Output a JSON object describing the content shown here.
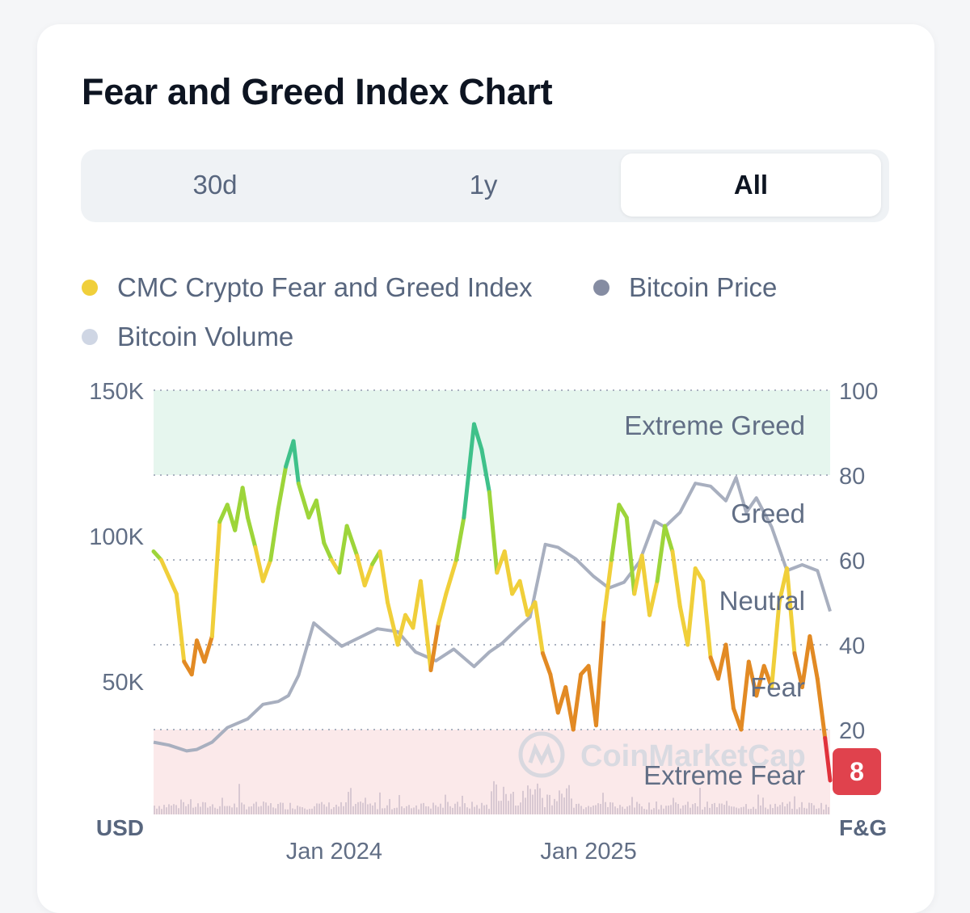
{
  "title": "Fear and Greed Index Chart",
  "tabs": [
    {
      "label": "30d",
      "active": false
    },
    {
      "label": "1y",
      "active": false
    },
    {
      "label": "All",
      "active": true
    }
  ],
  "legend": [
    {
      "label": "CMC Crypto Fear and Greed Index",
      "color": "#f0cf3a"
    },
    {
      "label": "Bitcoin Price",
      "color": "#858ca2"
    },
    {
      "label": "Bitcoin Volume",
      "color": "#cfd6e4"
    }
  ],
  "chart_data": {
    "type": "line",
    "left_axis": {
      "label": "USD",
      "ticks": [
        "150K",
        "100K",
        "50K"
      ],
      "tick_values": [
        150000,
        100000,
        50000
      ],
      "range": [
        0,
        150000
      ]
    },
    "right_axis": {
      "label": "F&G",
      "ticks": [
        "100",
        "80",
        "60",
        "40",
        "20"
      ],
      "tick_values": [
        100,
        80,
        60,
        40,
        20
      ],
      "range": [
        0,
        100
      ]
    },
    "x_ticks": [
      "Jan 2024",
      "Jan 2025"
    ],
    "x_tick_values": [
      2024.0,
      2025.0
    ],
    "x_range": [
      2023.29,
      2025.95
    ],
    "zones": [
      {
        "label": "Extreme Greed",
        "from": 80,
        "to": 100,
        "color": "#e6f6ee"
      },
      {
        "label": "Greed",
        "from": 60,
        "to": 80
      },
      {
        "label": "Neutral",
        "from": 40,
        "to": 60
      },
      {
        "label": "Fear",
        "from": 20,
        "to": 40
      },
      {
        "label": "Extreme Fear",
        "from": 0,
        "to": 20,
        "color": "#fbe9ea"
      }
    ],
    "current_value": "8",
    "watermark": "CoinMarketCap",
    "series": [
      {
        "name": "CMC Crypto Fear and Greed Index",
        "axis": "right",
        "x": [
          2023.29,
          2023.32,
          2023.35,
          2023.38,
          2023.41,
          2023.44,
          2023.46,
          2023.49,
          2023.52,
          2023.55,
          2023.58,
          2023.61,
          2023.64,
          2023.66,
          2023.69,
          2023.72,
          2023.75,
          2023.78,
          2023.81,
          2023.84,
          2023.86,
          2023.9,
          2023.93,
          2023.96,
          2023.99,
          2024.02,
          2024.05,
          2024.09,
          2024.12,
          2024.15,
          2024.18,
          2024.21,
          2024.25,
          2024.28,
          2024.31,
          2024.34,
          2024.38,
          2024.41,
          2024.44,
          2024.48,
          2024.51,
          2024.55,
          2024.58,
          2024.61,
          2024.64,
          2024.67,
          2024.7,
          2024.73,
          2024.76,
          2024.79,
          2024.82,
          2024.85,
          2024.88,
          2024.91,
          2024.94,
          2024.97,
          2025.0,
          2025.03,
          2025.06,
          2025.09,
          2025.12,
          2025.15,
          2025.18,
          2025.21,
          2025.24,
          2025.27,
          2025.3,
          2025.33,
          2025.36,
          2025.39,
          2025.42,
          2025.45,
          2025.48,
          2025.51,
          2025.54,
          2025.57,
          2025.6,
          2025.63,
          2025.66,
          2025.69,
          2025.72,
          2025.75,
          2025.78,
          2025.81,
          2025.84,
          2025.87,
          2025.9,
          2025.93,
          2025.95
        ],
        "values": [
          62,
          60,
          56,
          52,
          36,
          33,
          41,
          36,
          42,
          69,
          73,
          67,
          77,
          70,
          63,
          55,
          60,
          72,
          82,
          88,
          78,
          70,
          74,
          64,
          60,
          57,
          68,
          61,
          54,
          59,
          62,
          50,
          40,
          47,
          44,
          55,
          34,
          45,
          52,
          60,
          70,
          92,
          86,
          76,
          57,
          62,
          52,
          55,
          47,
          50,
          38,
          33,
          24,
          30,
          20,
          33,
          35,
          21,
          46,
          60,
          73,
          70,
          52,
          61,
          47,
          55,
          68,
          62,
          49,
          40,
          58,
          55,
          37,
          32,
          40,
          25,
          20,
          36,
          28,
          35,
          30,
          50,
          58,
          38,
          30,
          42,
          32,
          18,
          8
        ]
      },
      {
        "name": "Bitcoin Price",
        "axis": "left",
        "x": [
          2023.29,
          2023.35,
          2023.42,
          2023.46,
          2023.52,
          2023.58,
          2023.66,
          2023.72,
          2023.78,
          2023.82,
          2023.86,
          2023.92,
          2023.96,
          2024.03,
          2024.1,
          2024.17,
          2024.25,
          2024.32,
          2024.4,
          2024.47,
          2024.55,
          2024.61,
          2024.66,
          2024.72,
          2024.77,
          2024.83,
          2024.88,
          2024.95,
          2025.02,
          2025.08,
          2025.14,
          2025.2,
          2025.26,
          2025.3,
          2025.36,
          2025.42,
          2025.48,
          2025.54,
          2025.58,
          2025.62,
          2025.66,
          2025.72,
          2025.78,
          2025.84,
          2025.9,
          2025.95
        ],
        "values": [
          29000,
          28000,
          26000,
          26500,
          29000,
          34000,
          37000,
          42000,
          43000,
          45000,
          52000,
          70000,
          67000,
          62000,
          65000,
          68000,
          67000,
          60000,
          57000,
          61000,
          55000,
          60000,
          63000,
          68000,
          72000,
          97000,
          96000,
          92000,
          86000,
          82000,
          84000,
          91000,
          105000,
          103000,
          108000,
          118000,
          117000,
          112000,
          120000,
          108000,
          113000,
          103000,
          88000,
          90000,
          88000,
          74000
        ]
      }
    ],
    "volume_note": "Bitcoin Volume shown as faint bars along the bottom"
  }
}
